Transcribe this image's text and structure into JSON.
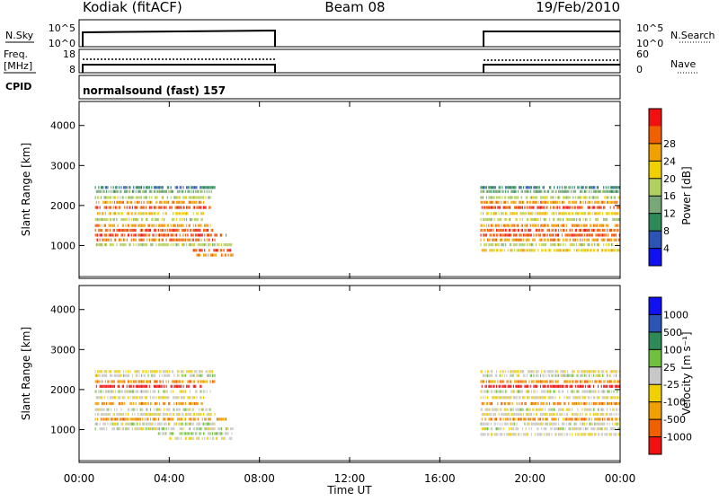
{
  "header": {
    "station": "Kodiak (fitACF)",
    "beam": "Beam 08",
    "date": "19/Feb/2010"
  },
  "noise_panel": {
    "left_label": "N.Sky",
    "left_ticks": [
      "10^5",
      "10^0"
    ],
    "right_label": "N.Search",
    "right_ticks": [
      "10^5",
      "10^0"
    ]
  },
  "freq_panel": {
    "left_label_line1": "Freq.",
    "left_label_line2": "[MHz]",
    "left_ticks": [
      "18",
      "8"
    ],
    "right_label": "Nave",
    "right_ticks": [
      "60",
      "0"
    ]
  },
  "cpid_panel": {
    "label": "CPID",
    "text": "normalsound (fast) 157"
  },
  "axes": {
    "ylabel": "Slant Range [km]",
    "xlabel": "Time UT",
    "y_ticks": [
      "1000",
      "2000",
      "3000",
      "4000"
    ],
    "x_ticks": [
      "00:00",
      "04:00",
      "08:00",
      "12:00",
      "16:00",
      "20:00",
      "00:00"
    ]
  },
  "colorbars": {
    "power": {
      "label": "Power [dB]",
      "ticks": [
        "4",
        "8",
        "12",
        "16",
        "20",
        "24",
        "28"
      ],
      "colors": [
        "#1010f0",
        "#2c54b4",
        "#2e8b57",
        "#78a878",
        "#b0d060",
        "#f0d000",
        "#f0a000",
        "#f06000",
        "#f01010"
      ]
    },
    "velocity": {
      "label": "Velocity [m s⁻¹]",
      "ticks": [
        "1000",
        "500",
        "100",
        "25",
        "-25",
        "-100",
        "-500",
        "-1000"
      ],
      "colors": [
        "#1010f0",
        "#2c54b4",
        "#2e8b57",
        "#70c040",
        "#c8c8c8",
        "#f0d000",
        "#f0a000",
        "#f06000",
        "#f01010"
      ]
    }
  },
  "chart_data": [
    {
      "type": "heatmap",
      "title": "Power",
      "xlabel": "Time UT",
      "ylabel": "Slant Range [km]",
      "xlim": [
        0,
        24
      ],
      "ylim": [
        180,
        4600
      ],
      "data_intervals_hours": [
        [
          0,
          8.6
        ],
        [
          17.8,
          24
        ]
      ],
      "colorbar": "Power [dB]",
      "colorbar_range": [
        0,
        32
      ],
      "echo_bands": [
        {
          "range_km": 2450,
          "t": [
            0.7,
            6.0
          ],
          "level": 8
        },
        {
          "range_km": 2350,
          "t": [
            0.7,
            6.0
          ],
          "level": 12
        },
        {
          "range_km": 2200,
          "t": [
            0.7,
            6.0
          ],
          "level": 16
        },
        {
          "range_km": 2080,
          "t": [
            0.7,
            5.5
          ],
          "level": 24
        },
        {
          "range_km": 1950,
          "t": [
            0.7,
            5.8
          ],
          "level": 28
        },
        {
          "range_km": 1800,
          "t": [
            0.7,
            5.5
          ],
          "level": 20
        },
        {
          "range_km": 1650,
          "t": [
            0.7,
            5.5
          ],
          "level": 16
        },
        {
          "range_km": 1500,
          "t": [
            0.7,
            5.8
          ],
          "level": 24
        },
        {
          "range_km": 1380,
          "t": [
            0.7,
            6.0
          ],
          "level": 28
        },
        {
          "range_km": 1260,
          "t": [
            0.7,
            6.5
          ],
          "level": 28
        },
        {
          "range_km": 1140,
          "t": [
            0.7,
            6.0
          ],
          "level": 26
        },
        {
          "range_km": 1020,
          "t": [
            0.7,
            6.8
          ],
          "level": 16
        },
        {
          "range_km": 880,
          "t": [
            5.0,
            6.8
          ],
          "level": 28
        },
        {
          "range_km": 760,
          "t": [
            5.2,
            6.8
          ],
          "level": 24
        },
        {
          "range_km": 2450,
          "t": [
            17.8,
            24
          ],
          "level": 8
        },
        {
          "range_km": 2350,
          "t": [
            17.8,
            24
          ],
          "level": 12
        },
        {
          "range_km": 2200,
          "t": [
            17.8,
            24
          ],
          "level": 16
        },
        {
          "range_km": 2080,
          "t": [
            17.8,
            24
          ],
          "level": 24
        },
        {
          "range_km": 1950,
          "t": [
            17.8,
            24
          ],
          "level": 28
        },
        {
          "range_km": 1800,
          "t": [
            17.8,
            24
          ],
          "level": 20
        },
        {
          "range_km": 1650,
          "t": [
            17.8,
            24
          ],
          "level": 16
        },
        {
          "range_km": 1500,
          "t": [
            17.8,
            24
          ],
          "level": 24
        },
        {
          "range_km": 1380,
          "t": [
            17.8,
            24
          ],
          "level": 28
        },
        {
          "range_km": 1260,
          "t": [
            17.8,
            24
          ],
          "level": 28
        },
        {
          "range_km": 1140,
          "t": [
            17.8,
            24
          ],
          "level": 24
        },
        {
          "range_km": 1020,
          "t": [
            17.8,
            24
          ],
          "level": 16
        },
        {
          "range_km": 880,
          "t": [
            17.8,
            24
          ],
          "level": 20
        }
      ]
    },
    {
      "type": "heatmap",
      "title": "Velocity",
      "xlabel": "Time UT",
      "ylabel": "Slant Range [km]",
      "xlim": [
        0,
        24
      ],
      "ylim": [
        180,
        4600
      ],
      "data_intervals_hours": [
        [
          0,
          8.6
        ],
        [
          17.8,
          24
        ]
      ],
      "colorbar": "Velocity [m s⁻¹]",
      "colorbar_range": [
        -1000,
        1000
      ],
      "echo_bands": [
        {
          "range_km": 2450,
          "t": [
            0.7,
            6.0
          ],
          "level": -100
        },
        {
          "range_km": 2350,
          "t": [
            0.7,
            6.0
          ],
          "level": 25
        },
        {
          "range_km": 2200,
          "t": [
            0.7,
            6.0
          ],
          "level": -500
        },
        {
          "range_km": 2080,
          "t": [
            0.7,
            5.5
          ],
          "level": -1000
        },
        {
          "range_km": 1950,
          "t": [
            0.7,
            5.8
          ],
          "level": 0
        },
        {
          "range_km": 1800,
          "t": [
            0.7,
            5.5
          ],
          "level": -100
        },
        {
          "range_km": 1650,
          "t": [
            0.7,
            5.5
          ],
          "level": -500
        },
        {
          "range_km": 1500,
          "t": [
            0.7,
            5.8
          ],
          "level": 0
        },
        {
          "range_km": 1380,
          "t": [
            0.7,
            6.0
          ],
          "level": -100
        },
        {
          "range_km": 1260,
          "t": [
            0.7,
            6.5
          ],
          "level": -500
        },
        {
          "range_km": 1140,
          "t": [
            0.7,
            6.0
          ],
          "level": 0
        },
        {
          "range_km": 1020,
          "t": [
            0.7,
            6.8
          ],
          "level": 0
        },
        {
          "range_km": 900,
          "t": [
            3.5,
            6.8
          ],
          "level": 100
        },
        {
          "range_km": 780,
          "t": [
            4.0,
            6.8
          ],
          "level": -100
        },
        {
          "range_km": 2450,
          "t": [
            17.8,
            24
          ],
          "level": -100
        },
        {
          "range_km": 2350,
          "t": [
            17.8,
            24
          ],
          "level": 25
        },
        {
          "range_km": 2200,
          "t": [
            17.8,
            24
          ],
          "level": -500
        },
        {
          "range_km": 2080,
          "t": [
            17.8,
            24
          ],
          "level": -1000
        },
        {
          "range_km": 1950,
          "t": [
            17.8,
            24
          ],
          "level": 0
        },
        {
          "range_km": 1800,
          "t": [
            17.8,
            24
          ],
          "level": -100
        },
        {
          "range_km": 1650,
          "t": [
            17.8,
            24
          ],
          "level": -500
        },
        {
          "range_km": 1500,
          "t": [
            17.8,
            24
          ],
          "level": 0
        },
        {
          "range_km": 1380,
          "t": [
            17.8,
            24
          ],
          "level": -100
        },
        {
          "range_km": 1260,
          "t": [
            17.8,
            24
          ],
          "level": -500
        },
        {
          "range_km": 1140,
          "t": [
            17.8,
            24
          ],
          "level": 0
        },
        {
          "range_km": 1020,
          "t": [
            17.8,
            24
          ],
          "level": 0
        },
        {
          "range_km": 880,
          "t": [
            17.8,
            24
          ],
          "level": -100
        }
      ]
    }
  ]
}
